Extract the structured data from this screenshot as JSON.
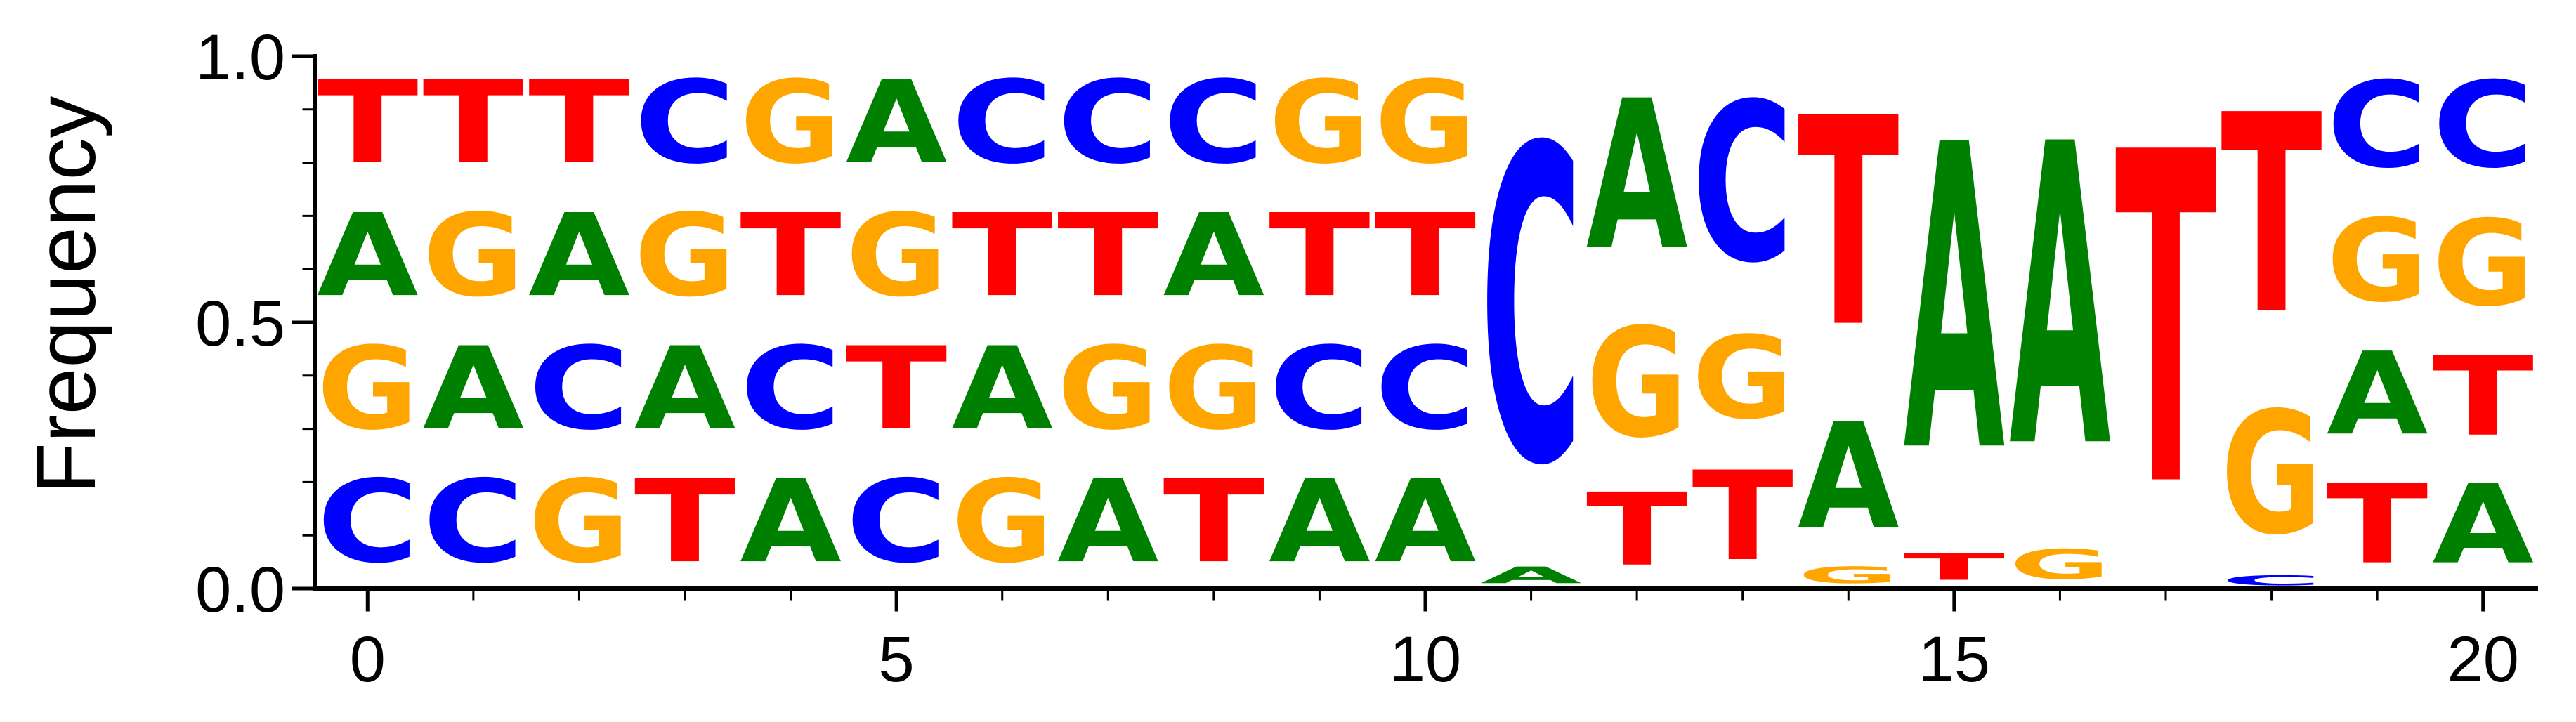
{
  "chart_data": {
    "type": "sequence-logo",
    "title": "",
    "xlabel": "",
    "ylabel": "Frequency",
    "xlim": [
      -0.5,
      20.5
    ],
    "ylim": [
      0,
      1
    ],
    "xticks": [
      0,
      5,
      10,
      15,
      20
    ],
    "yticks": [
      0.0,
      0.5,
      1.0
    ],
    "ytick_labels": [
      "0.0",
      "0.5",
      "1.0"
    ],
    "grid": false,
    "colors": {
      "A": "#008000",
      "C": "#0000ff",
      "G": "#ffa500",
      "T": "#ff0000"
    },
    "positions": [
      {
        "x": 0,
        "stack": [
          [
            "C",
            0.25
          ],
          [
            "G",
            0.25
          ],
          [
            "A",
            0.25
          ],
          [
            "T",
            0.25
          ]
        ]
      },
      {
        "x": 1,
        "stack": [
          [
            "C",
            0.25
          ],
          [
            "A",
            0.25
          ],
          [
            "G",
            0.25
          ],
          [
            "T",
            0.25
          ]
        ]
      },
      {
        "x": 2,
        "stack": [
          [
            "G",
            0.25
          ],
          [
            "C",
            0.25
          ],
          [
            "A",
            0.25
          ],
          [
            "T",
            0.25
          ]
        ]
      },
      {
        "x": 3,
        "stack": [
          [
            "T",
            0.25
          ],
          [
            "A",
            0.25
          ],
          [
            "G",
            0.25
          ],
          [
            "C",
            0.25
          ]
        ]
      },
      {
        "x": 4,
        "stack": [
          [
            "A",
            0.25
          ],
          [
            "C",
            0.25
          ],
          [
            "T",
            0.25
          ],
          [
            "G",
            0.25
          ]
        ]
      },
      {
        "x": 5,
        "stack": [
          [
            "C",
            0.25
          ],
          [
            "T",
            0.25
          ],
          [
            "G",
            0.25
          ],
          [
            "A",
            0.25
          ]
        ]
      },
      {
        "x": 6,
        "stack": [
          [
            "G",
            0.25
          ],
          [
            "A",
            0.25
          ],
          [
            "T",
            0.25
          ],
          [
            "C",
            0.25
          ]
        ]
      },
      {
        "x": 7,
        "stack": [
          [
            "A",
            0.25
          ],
          [
            "G",
            0.25
          ],
          [
            "T",
            0.25
          ],
          [
            "C",
            0.25
          ]
        ]
      },
      {
        "x": 8,
        "stack": [
          [
            "T",
            0.25
          ],
          [
            "G",
            0.25
          ],
          [
            "A",
            0.25
          ],
          [
            "C",
            0.25
          ]
        ]
      },
      {
        "x": 9,
        "stack": [
          [
            "A",
            0.25
          ],
          [
            "C",
            0.25
          ],
          [
            "T",
            0.25
          ],
          [
            "G",
            0.25
          ]
        ]
      },
      {
        "x": 10,
        "stack": [
          [
            "A",
            0.25
          ],
          [
            "C",
            0.25
          ],
          [
            "T",
            0.25
          ],
          [
            "G",
            0.25
          ]
        ]
      },
      {
        "x": 11,
        "stack": [
          [
            "A",
            0.05
          ],
          [
            "C",
            0.95
          ]
        ]
      },
      {
        "x": 12,
        "stack": [
          [
            "T",
            0.22
          ],
          [
            "G",
            0.33
          ],
          [
            "A",
            0.45
          ]
        ]
      },
      {
        "x": 13,
        "stack": [
          [
            "T",
            0.27
          ],
          [
            "G",
            0.25
          ],
          [
            "C",
            0.48
          ]
        ]
      },
      {
        "x": 14,
        "stack": [
          [
            "G",
            0.05
          ],
          [
            "A",
            0.32
          ],
          [
            "T",
            0.63
          ]
        ]
      },
      {
        "x": 15,
        "stack": [
          [
            "T",
            0.08
          ],
          [
            "A",
            0.92
          ]
        ]
      },
      {
        "x": 16,
        "stack": [
          [
            "G",
            0.09
          ],
          [
            "A",
            0.91
          ]
        ]
      },
      {
        "x": 17,
        "stack": [
          [
            "T",
            1.0
          ]
        ]
      },
      {
        "x": 18,
        "stack": [
          [
            "C",
            0.03
          ],
          [
            "G",
            0.37
          ],
          [
            "T",
            0.6
          ]
        ]
      },
      {
        "x": 19,
        "stack": [
          [
            "T",
            0.24
          ],
          [
            "A",
            0.25
          ],
          [
            "G",
            0.25
          ],
          [
            "C",
            0.26
          ]
        ]
      },
      {
        "x": 20,
        "stack": [
          [
            "A",
            0.24
          ],
          [
            "T",
            0.24
          ],
          [
            "G",
            0.26
          ],
          [
            "C",
            0.26
          ]
        ]
      }
    ]
  }
}
